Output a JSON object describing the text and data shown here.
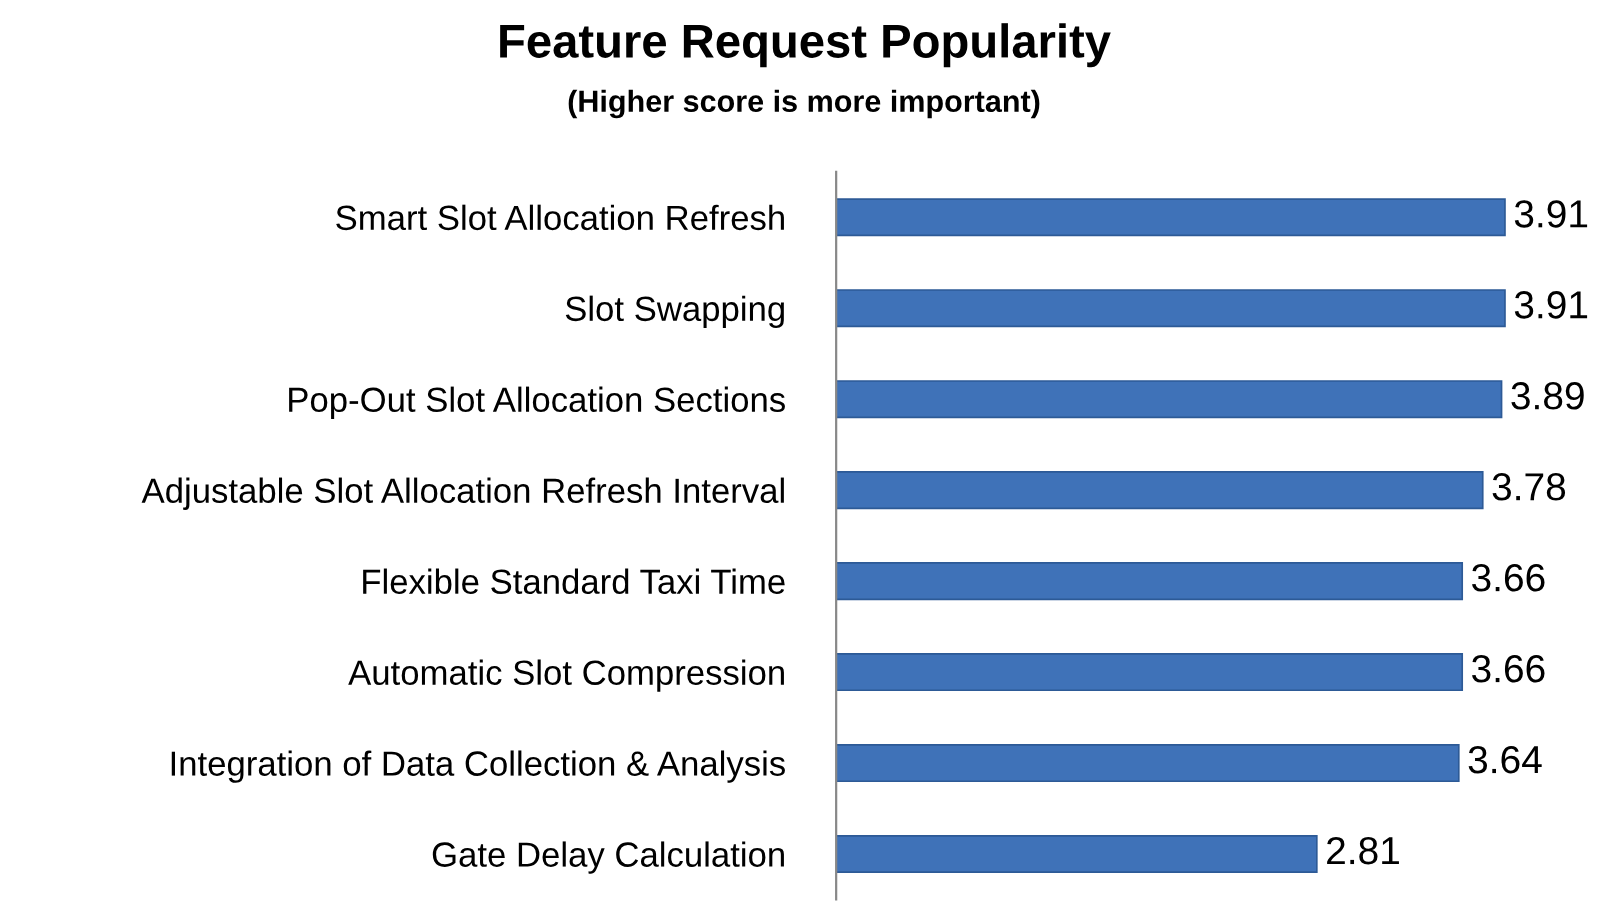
{
  "chart_data": {
    "type": "bar",
    "orientation": "horizontal",
    "title": "Feature Request Popularity",
    "subtitle": "(Higher score is more important)",
    "categories": [
      "Smart Slot Allocation Refresh",
      "Slot Swapping",
      "Pop-Out Slot Allocation Sections",
      "Adjustable Slot Allocation Refresh Interval",
      "Flexible Standard Taxi Time",
      "Automatic Slot Compression",
      "Integration of Data Collection & Analysis",
      "Gate Delay Calculation"
    ],
    "values": [
      3.91,
      3.91,
      3.89,
      3.78,
      3.66,
      3.66,
      3.64,
      2.81
    ],
    "color": "#3f72b8",
    "data_labels": true
  }
}
